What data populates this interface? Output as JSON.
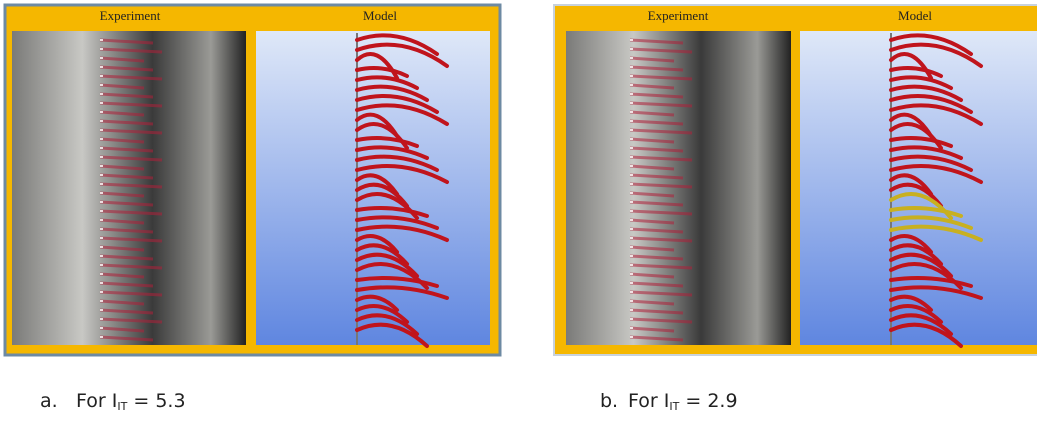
{
  "panels": [
    {
      "experiment_title": "Experiment",
      "model_title": "Model",
      "label": "a.",
      "caption_prefix": "For I",
      "caption_sub": "IT",
      "caption_rest": "= 5.3"
    },
    {
      "experiment_title": "Experiment",
      "model_title": "Model",
      "label": "b.",
      "caption_prefix": "For I",
      "caption_sub": "IT",
      "caption_rest": "= 2.9"
    }
  ]
}
